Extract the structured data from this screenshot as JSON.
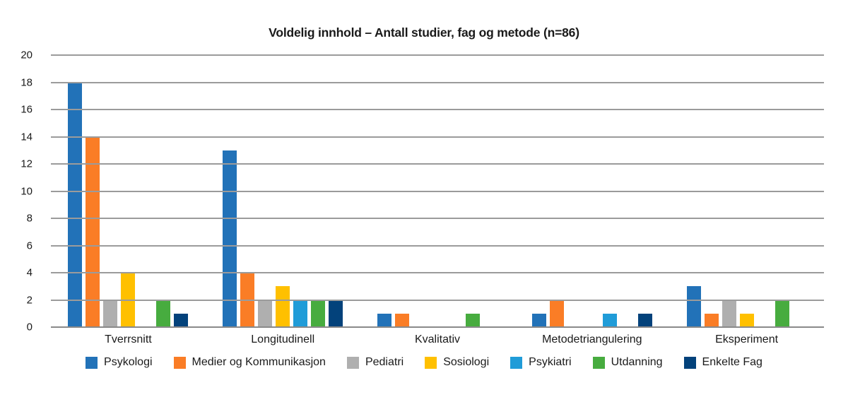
{
  "title": "Voldelig innhold – Antall studier, fag og metode (n=86)",
  "chart_data": {
    "type": "bar",
    "categories": [
      "Tverrsnitt",
      "Longitudinell",
      "Kvalitativ",
      "Metodetriangulering",
      "Eksperiment"
    ],
    "series": [
      {
        "name": "Psykologi",
        "color": "#2272B8",
        "values": [
          18,
          13,
          1,
          1,
          3
        ]
      },
      {
        "name": "Medier og Kommunikasjon",
        "color": "#FA7D26",
        "values": [
          14,
          4,
          1,
          2,
          1
        ]
      },
      {
        "name": "Pediatri",
        "color": "#AFAFAF",
        "values": [
          2,
          2,
          0,
          0,
          2
        ]
      },
      {
        "name": "Sosiologi",
        "color": "#FFC000",
        "values": [
          4,
          3,
          0,
          0,
          1
        ]
      },
      {
        "name": "Psykiatri",
        "color": "#209CD8",
        "values": [
          0,
          2,
          0,
          1,
          0
        ]
      },
      {
        "name": "Utdanning",
        "color": "#47AC3F",
        "values": [
          2,
          2,
          1,
          0,
          2
        ]
      },
      {
        "name": "Enkelte Fag",
        "color": "#03427B",
        "values": [
          1,
          2,
          0,
          1,
          0
        ]
      }
    ],
    "ylim": [
      0,
      20
    ],
    "yticks": [
      0,
      2,
      4,
      6,
      8,
      10,
      12,
      14,
      16,
      18,
      20
    ],
    "grid": true,
    "legend_position": "bottom"
  },
  "colors": {
    "gridline": "#9B9B9B",
    "baseline": "#8A8A8A",
    "text": "#1A1A1A",
    "background": "#FFFFFF"
  }
}
